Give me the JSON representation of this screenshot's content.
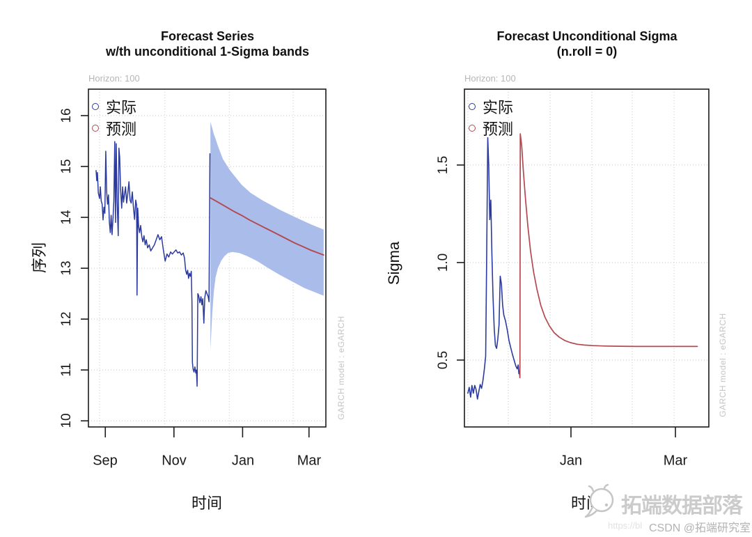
{
  "page": {
    "background": "#ffffff"
  },
  "colors": {
    "actual_blue": "#2B3A9E",
    "forecast_red": "#B4484F",
    "band_fill": "#A9BCEA",
    "grid": "#c6c6c6",
    "axis": "#1b1b1b",
    "muted_gray": "#b6b6b6"
  },
  "watermark": {
    "brand": "拓端数据部落",
    "csdn": "CSDN @拓端研究室",
    "url_fragment": "https://bl",
    "logo_icon": "speech-bubble-mascot"
  },
  "chart_data": [
    {
      "type": "line",
      "title_line1": "Forecast Series",
      "title_line2": "w/th unconditional 1-Sigma bands",
      "annotation_top_left": "Horizon: 100",
      "annotation_right_vertical": "GARCH model : eGARCH",
      "xlabel": "时间",
      "ylabel": "序列",
      "legend": [
        {
          "label": "实际",
          "color": "#2B3A9E"
        },
        {
          "label": "预测",
          "color": "#B4484F"
        }
      ],
      "x_range": [
        0,
        211
      ],
      "y_range": [
        9.88,
        16.52
      ],
      "x_ticks": [
        {
          "x": 15,
          "label": "Sep"
        },
        {
          "x": 76,
          "label": "Nov"
        },
        {
          "x": 137,
          "label": "Jan"
        },
        {
          "x": 196,
          "label": "Mar"
        }
      ],
      "y_ticks": [
        {
          "v": 16,
          "label": "16"
        },
        {
          "v": 15,
          "label": "15"
        },
        {
          "v": 14,
          "label": "14"
        },
        {
          "v": 13,
          "label": "13"
        },
        {
          "v": 12,
          "label": "12"
        },
        {
          "v": 11,
          "label": "11"
        },
        {
          "v": 10,
          "label": "10"
        }
      ],
      "x_gridlines": [
        9.9,
        67.9,
        125.2,
        182.0
      ],
      "y_gridlines": [
        10,
        11,
        12,
        13,
        14,
        15,
        16
      ],
      "band": {
        "color": "#A9BCEA",
        "upper": [
          [
            108.4,
            15.88
          ],
          [
            111.4,
            15.64
          ],
          [
            113.2,
            15.53
          ],
          [
            115.1,
            15.4
          ],
          [
            119.4,
            15.15
          ],
          [
            125.6,
            14.93
          ],
          [
            136.1,
            14.64
          ],
          [
            144.2,
            14.48
          ],
          [
            155,
            14.33
          ],
          [
            170,
            14.15
          ],
          [
            185,
            13.99
          ],
          [
            197,
            13.87
          ],
          [
            209,
            13.76
          ]
        ],
        "lower": [
          [
            108.4,
            11.4
          ],
          [
            110,
            12.1
          ],
          [
            111.5,
            12.55
          ],
          [
            113,
            12.82
          ],
          [
            115,
            13.0
          ],
          [
            118,
            13.15
          ],
          [
            121,
            13.24
          ],
          [
            124,
            13.3
          ],
          [
            128,
            13.32
          ],
          [
            134,
            13.3
          ],
          [
            141,
            13.24
          ],
          [
            150,
            13.14
          ],
          [
            160,
            13.0
          ],
          [
            170,
            12.87
          ],
          [
            181,
            12.74
          ],
          [
            192,
            12.61
          ],
          [
            200,
            12.54
          ],
          [
            209,
            12.46
          ]
        ]
      },
      "series": [
        {
          "name": "actual",
          "color": "#2B3A9E",
          "width": 1.5,
          "points": [
            [
              6.8,
              14.92
            ],
            [
              7.4,
              14.72
            ],
            [
              8.0,
              14.88
            ],
            [
              8.8,
              14.48
            ],
            [
              9.9,
              14.37
            ],
            [
              10.6,
              14.6
            ],
            [
              11.4,
              14.32
            ],
            [
              12.2,
              14.26
            ],
            [
              13.0,
              13.95
            ],
            [
              13.8,
              14.2
            ],
            [
              14.6,
              14.08
            ],
            [
              15.4,
              15.3
            ],
            [
              16.2,
              14.5
            ],
            [
              17.0,
              14.26
            ],
            [
              17.8,
              14.44
            ],
            [
              18.6,
              13.9
            ],
            [
              19.4,
              13.7
            ],
            [
              20.2,
              14.04
            ],
            [
              21.0,
              13.66
            ],
            [
              21.8,
              13.96
            ],
            [
              22.6,
              14.32
            ],
            [
              23.4,
              15.49
            ],
            [
              24.1,
              13.9
            ],
            [
              24.7,
              15.45
            ],
            [
              25.5,
              14.32
            ],
            [
              26.5,
              13.64
            ],
            [
              27.1,
              15.36
            ],
            [
              27.8,
              15.18
            ],
            [
              28.6,
              14.55
            ],
            [
              29.6,
              14.18
            ],
            [
              30.4,
              14.6
            ],
            [
              31.2,
              14.3
            ],
            [
              32.0,
              14.44
            ],
            [
              33.0,
              14.6
            ],
            [
              34.0,
              14.28
            ],
            [
              35.0,
              14.48
            ],
            [
              36.0,
              14.7
            ],
            [
              37.0,
              14.34
            ],
            [
              38.0,
              14.28
            ],
            [
              39.0,
              14.5
            ],
            [
              40.0,
              14.2
            ],
            [
              41.0,
              13.96
            ],
            [
              42.0,
              14.34
            ],
            [
              42.8,
              14.24
            ],
            [
              43.2,
              12.47
            ],
            [
              43.8,
              14.18
            ],
            [
              44.6,
              13.82
            ],
            [
              45.4,
              13.7
            ],
            [
              46.4,
              13.84
            ],
            [
              47.4,
              13.62
            ],
            [
              48.4,
              13.52
            ],
            [
              49.4,
              13.64
            ],
            [
              50.4,
              13.46
            ],
            [
              51.4,
              13.56
            ],
            [
              52.6,
              13.4
            ],
            [
              54.0,
              13.46
            ],
            [
              55.4,
              13.34
            ],
            [
              57.0,
              13.4
            ],
            [
              58.6,
              13.46
            ],
            [
              60.2,
              13.56
            ],
            [
              61.8,
              13.66
            ],
            [
              63.4,
              13.56
            ],
            [
              65.0,
              13.62
            ],
            [
              66.6,
              13.36
            ],
            [
              68.2,
              13.14
            ],
            [
              69.8,
              13.28
            ],
            [
              71.4,
              13.22
            ],
            [
              73.0,
              13.32
            ],
            [
              74.6,
              13.28
            ],
            [
              76.2,
              13.32
            ],
            [
              77.8,
              13.36
            ],
            [
              79.4,
              13.3
            ],
            [
              81.0,
              13.32
            ],
            [
              82.6,
              13.26
            ],
            [
              84.2,
              13.3
            ],
            [
              85.4,
              13.2
            ],
            [
              86.4,
              12.96
            ],
            [
              87.4,
              12.88
            ],
            [
              88.2,
              12.96
            ],
            [
              89.0,
              12.8
            ],
            [
              89.8,
              12.9
            ],
            [
              90.6,
              12.84
            ],
            [
              91.4,
              12.94
            ],
            [
              92.0,
              12.32
            ],
            [
              92.4,
              11.15
            ],
            [
              93.0,
              11.02
            ],
            [
              93.8,
              10.96
            ],
            [
              94.6,
              11.06
            ],
            [
              95.4,
              10.94
            ],
            [
              96.0,
              11.0
            ],
            [
              96.6,
              10.68
            ],
            [
              97.2,
              12.5
            ],
            [
              98.0,
              12.46
            ],
            [
              99.0,
              12.32
            ],
            [
              100.0,
              12.44
            ],
            [
              100.8,
              12.28
            ],
            [
              101.6,
              12.4
            ],
            [
              102.6,
              11.92
            ],
            [
              103.4,
              12.42
            ],
            [
              104.4,
              12.56
            ],
            [
              105.4,
              12.5
            ],
            [
              106.4,
              12.44
            ],
            [
              107.2,
              12.34
            ],
            [
              108.0,
              15.25
            ]
          ]
        },
        {
          "name": "forecast",
          "color": "#B4484F",
          "width": 1.9,
          "points": [
            [
              108.6,
              14.38
            ],
            [
              115,
              14.3
            ],
            [
              122,
              14.21
            ],
            [
              129,
              14.12
            ],
            [
              136,
              14.04
            ],
            [
              143,
              13.95
            ],
            [
              151,
              13.86
            ],
            [
              159,
              13.77
            ],
            [
              167,
              13.68
            ],
            [
              175,
              13.59
            ],
            [
              183,
              13.5
            ],
            [
              191,
              13.42
            ],
            [
              197,
              13.36
            ],
            [
              203,
              13.31
            ],
            [
              209,
              13.26
            ]
          ]
        }
      ]
    },
    {
      "type": "line",
      "title_line1": "Forecast Unconditional Sigma",
      "title_line2": "(n.roll = 0)",
      "annotation_top_left": "Horizon: 100",
      "annotation_right_vertical": "GARCH model : eGARCH",
      "xlabel": "时间",
      "ylabel": "Sigma",
      "legend": [
        {
          "label": "实际",
          "color": "#2B3A9E"
        },
        {
          "label": "预测",
          "color": "#B4484F"
        }
      ],
      "x_range": [
        0,
        142.7
      ],
      "y_range": [
        0.157,
        1.889
      ],
      "x_ticks": [
        {
          "x": 62.2,
          "label": "Jan"
        },
        {
          "x": 123.2,
          "label": "Mar"
        }
      ],
      "y_ticks": [
        {
          "v": 1.5,
          "label": "1.5"
        },
        {
          "v": 1.0,
          "label": "1.0"
        },
        {
          "v": 0.5,
          "label": "0.5"
        }
      ],
      "x_gridlines": [
        2,
        25.6,
        50,
        74.4,
        98,
        122.4
      ],
      "y_gridlines": [
        0.5,
        1.0,
        1.5
      ],
      "band": null,
      "series": [
        {
          "name": "actual",
          "color": "#2B3A9E",
          "width": 1.6,
          "points": [
            [
              2,
              0.33
            ],
            [
              2.8,
              0.36
            ],
            [
              3.6,
              0.31
            ],
            [
              4.4,
              0.37
            ],
            [
              5.2,
              0.33
            ],
            [
              6.0,
              0.37
            ],
            [
              6.8,
              0.35
            ],
            [
              7.6,
              0.3
            ],
            [
              8.4,
              0.34
            ],
            [
              9.2,
              0.375
            ],
            [
              10.0,
              0.355
            ],
            [
              10.8,
              0.395
            ],
            [
              11.6,
              0.45
            ],
            [
              12.4,
              0.52
            ],
            [
              13.0,
              1.05
            ],
            [
              13.6,
              1.64
            ],
            [
              14.2,
              1.5
            ],
            [
              14.8,
              1.22
            ],
            [
              15.4,
              1.32
            ],
            [
              16.0,
              1.05
            ],
            [
              16.7,
              0.82
            ],
            [
              17.4,
              0.66
            ],
            [
              18.1,
              0.575
            ],
            [
              18.8,
              0.56
            ],
            [
              19.5,
              0.61
            ],
            [
              20.2,
              0.68
            ],
            [
              20.9,
              0.93
            ],
            [
              21.6,
              0.89
            ],
            [
              22.3,
              0.78
            ],
            [
              23.0,
              0.73
            ],
            [
              24.0,
              0.7
            ],
            [
              25.0,
              0.655
            ],
            [
              26.0,
              0.6
            ],
            [
              27.0,
              0.565
            ],
            [
              28.0,
              0.53
            ],
            [
              29.0,
              0.5
            ],
            [
              30.0,
              0.47
            ],
            [
              30.8,
              0.455
            ],
            [
              31.4,
              0.475
            ],
            [
              31.8,
              0.43
            ],
            [
              32.1,
              0.445
            ],
            [
              32.4,
              0.41
            ]
          ]
        },
        {
          "name": "forecast",
          "color": "#B4484F",
          "width": 1.7,
          "points": [
            [
              32.4,
              0.41
            ],
            [
              32.6,
              1.66
            ],
            [
              33.4,
              1.6
            ],
            [
              34.4,
              1.47
            ],
            [
              35.6,
              1.33
            ],
            [
              37.0,
              1.19
            ],
            [
              38.6,
              1.06
            ],
            [
              40.4,
              0.95
            ],
            [
              42.4,
              0.86
            ],
            [
              44.6,
              0.78
            ],
            [
              47.0,
              0.72
            ],
            [
              49.6,
              0.675
            ],
            [
              52.4,
              0.64
            ],
            [
              55.4,
              0.617
            ],
            [
              58.6,
              0.6
            ],
            [
              62.0,
              0.589
            ],
            [
              66.0,
              0.581
            ],
            [
              70.0,
              0.577
            ],
            [
              75.0,
              0.574
            ],
            [
              82.0,
              0.572
            ],
            [
              90.0,
              0.571
            ],
            [
              100.0,
              0.57
            ],
            [
              115.0,
              0.57
            ],
            [
              136.0,
              0.57
            ]
          ]
        }
      ]
    }
  ]
}
